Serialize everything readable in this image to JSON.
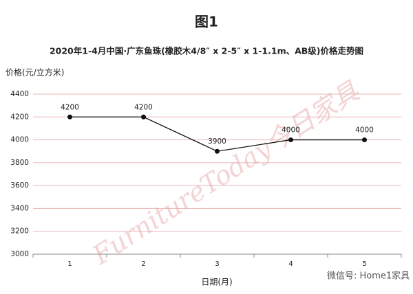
{
  "chart_data": {
    "type": "line",
    "title": "图1",
    "subtitle": "2020年1-4月中国·广东鱼珠(橡胶木4/8″ x 2-5″ x 1-1.1m、AB级)价格走势图",
    "y_label": "价格(元/立方米)",
    "x_label": "日期(月)",
    "watermark": "FurnitureToday今日家具",
    "footer": "微信号: Home1家具",
    "categories": [
      "1",
      "2",
      "3",
      "4",
      "5"
    ],
    "values": [
      4200,
      4200,
      3900,
      4000,
      4000
    ],
    "color": "#111111",
    "ylim": [
      3000,
      4400
    ],
    "yticks": [
      3000,
      3200,
      3400,
      3600,
      3800,
      4000,
      4200,
      4400
    ],
    "grid": true
  }
}
